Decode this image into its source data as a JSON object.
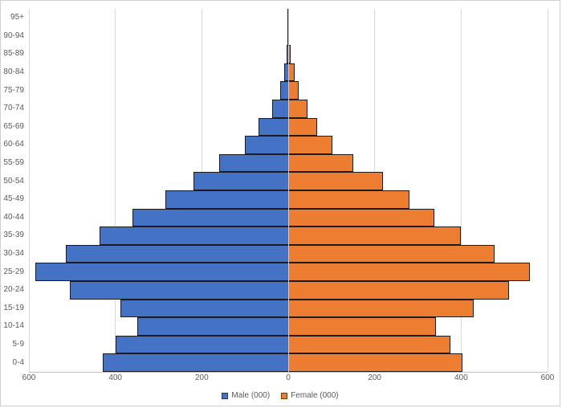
{
  "chart_data": {
    "type": "bar",
    "subtype": "population_pyramid",
    "orientation": "horizontal",
    "title": "",
    "categories": [
      "95+",
      "90-94",
      "85-89",
      "80-84",
      "75-79",
      "70-74",
      "65-69",
      "60-64",
      "55-59",
      "50-54",
      "45-49",
      "40-44",
      "35-39",
      "30-34",
      "25-29",
      "20-24",
      "15-19",
      "10-14",
      "5-9",
      "0-4"
    ],
    "categories_order_note": "listed top to bottom as displayed on the y axis",
    "series": [
      {
        "name": "Male (000)",
        "color": "#4472C4",
        "side": "left",
        "values": [
          1,
          2,
          4,
          10,
          18,
          38,
          68,
          100,
          160,
          220,
          284,
          360,
          436,
          515,
          586,
          505,
          388,
          350,
          400,
          430
        ]
      },
      {
        "name": "Female (000)",
        "color": "#ED7D31",
        "side": "right",
        "values": [
          1,
          2,
          5,
          14,
          24,
          45,
          67,
          102,
          150,
          220,
          280,
          338,
          400,
          478,
          560,
          510,
          430,
          342,
          375,
          404
        ]
      }
    ],
    "x_axis": {
      "tick_labels": [
        "600",
        "400",
        "200",
        "0",
        "200",
        "400",
        "600"
      ],
      "max_each_side": 600,
      "units": "thousands"
    },
    "grid": "vertical_gridlines_on",
    "legend_position": "bottom_center",
    "colors": {
      "male_fill": "#4472C4",
      "female_fill": "#ED7D31",
      "bar_border": "#1c1c1c",
      "gridline": "#d9d9d9",
      "axis_line": "#bfbfbf",
      "label_text": "#595959",
      "chart_border": "#d0cece",
      "background": "#ffffff"
    }
  },
  "legend": {
    "male_label": "Male (000)",
    "female_label": "Female (000)"
  }
}
